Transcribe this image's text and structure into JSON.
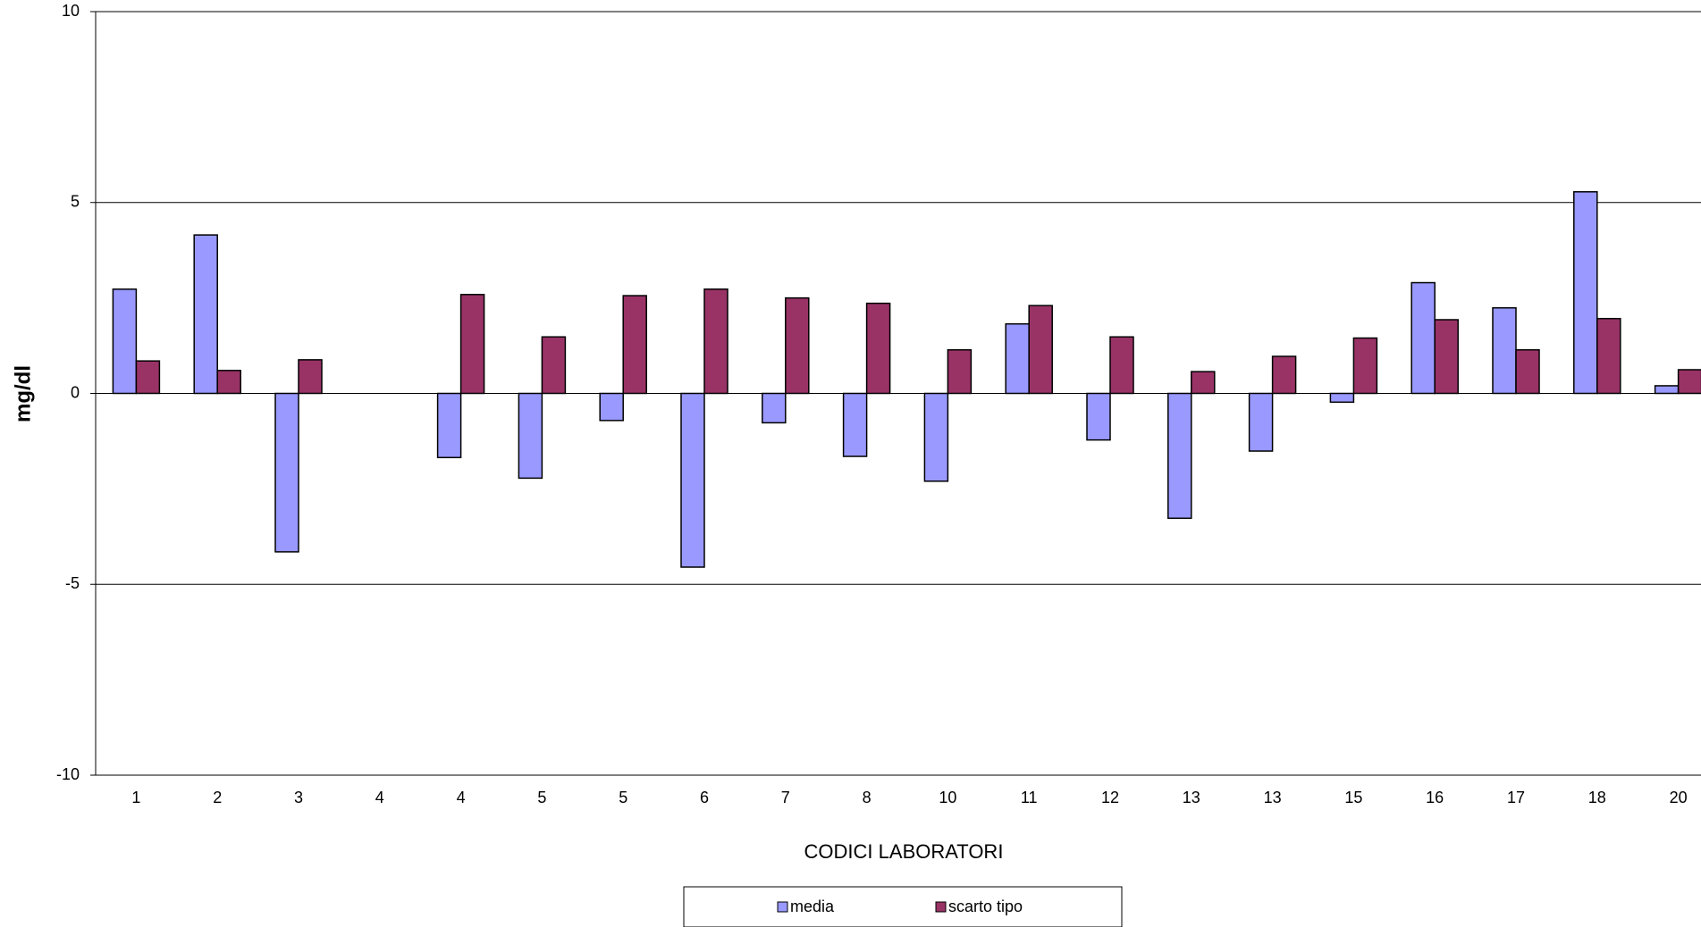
{
  "chart_data": {
    "type": "bar",
    "x_label": "CODICI LABORATORI",
    "y_label": "mg/dl",
    "categories": [
      "1",
      "2",
      "3",
      "4",
      "4",
      "5",
      "5",
      "6",
      "7",
      "8",
      "10",
      "11",
      "12",
      "13",
      "13",
      "15",
      "16",
      "17",
      "18",
      "20"
    ],
    "series": [
      {
        "name": "media",
        "color": "#9999ff",
        "values": [
          2.73,
          4.15,
          -4.15,
          null,
          -1.68,
          -2.22,
          -0.71,
          -4.55,
          -0.77,
          -1.65,
          -2.3,
          1.82,
          -1.22,
          -3.27,
          -1.51,
          -0.23,
          2.9,
          2.24,
          5.28,
          0.2
        ]
      },
      {
        "name": "scarto tipo",
        "color": "#993366",
        "values": [
          0.85,
          0.6,
          0.88,
          null,
          2.59,
          1.48,
          2.56,
          2.73,
          2.5,
          2.36,
          1.14,
          2.3,
          1.48,
          0.57,
          0.97,
          1.45,
          1.93,
          1.14,
          1.96,
          0.62
        ]
      }
    ],
    "ylim": [
      -10,
      10
    ],
    "yticks": [
      -10,
      -5,
      0,
      5,
      10
    ],
    "grid": true
  }
}
